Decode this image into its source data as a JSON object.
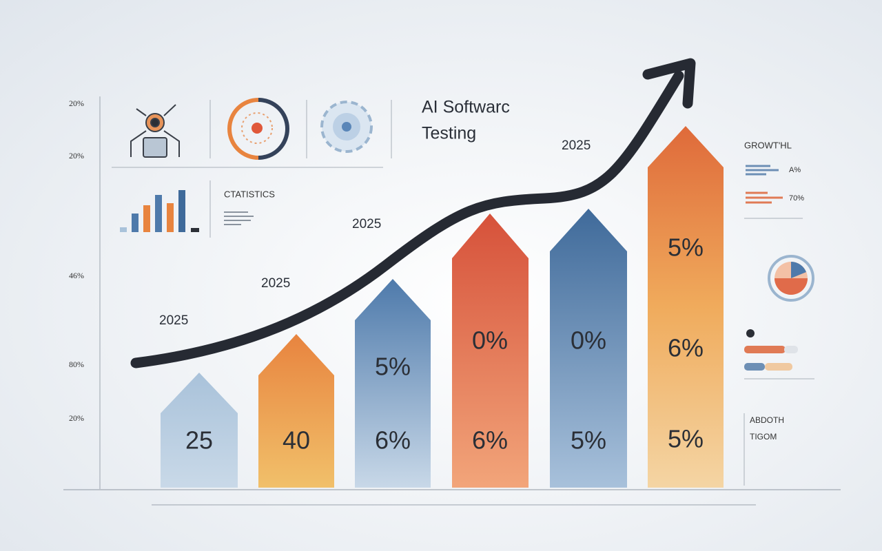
{
  "header": {
    "title_line1": "AI Softwarc",
    "title_line2": "Testing"
  },
  "axis_labels": [
    "20%",
    "20%",
    "46%",
    "80%",
    "20%"
  ],
  "year_labels": [
    "2025",
    "2025",
    "2025",
    "2025"
  ],
  "panels": {
    "statistics": "CTATISTICS"
  },
  "arrows": [
    {
      "labels": [
        "25"
      ]
    },
    {
      "labels": [
        "40"
      ]
    },
    {
      "labels": [
        "5%",
        "6%"
      ]
    },
    {
      "labels": [
        "0%",
        "6%"
      ]
    },
    {
      "labels": [
        "0%",
        "5%"
      ]
    },
    {
      "labels": [
        "5%",
        "6%",
        "5%"
      ]
    }
  ],
  "sidebar": {
    "growth_title": "GROWT'HL",
    "rows": [
      "A%",
      "70%"
    ],
    "footer": [
      "ABDOTH",
      "TIGOM"
    ]
  }
}
